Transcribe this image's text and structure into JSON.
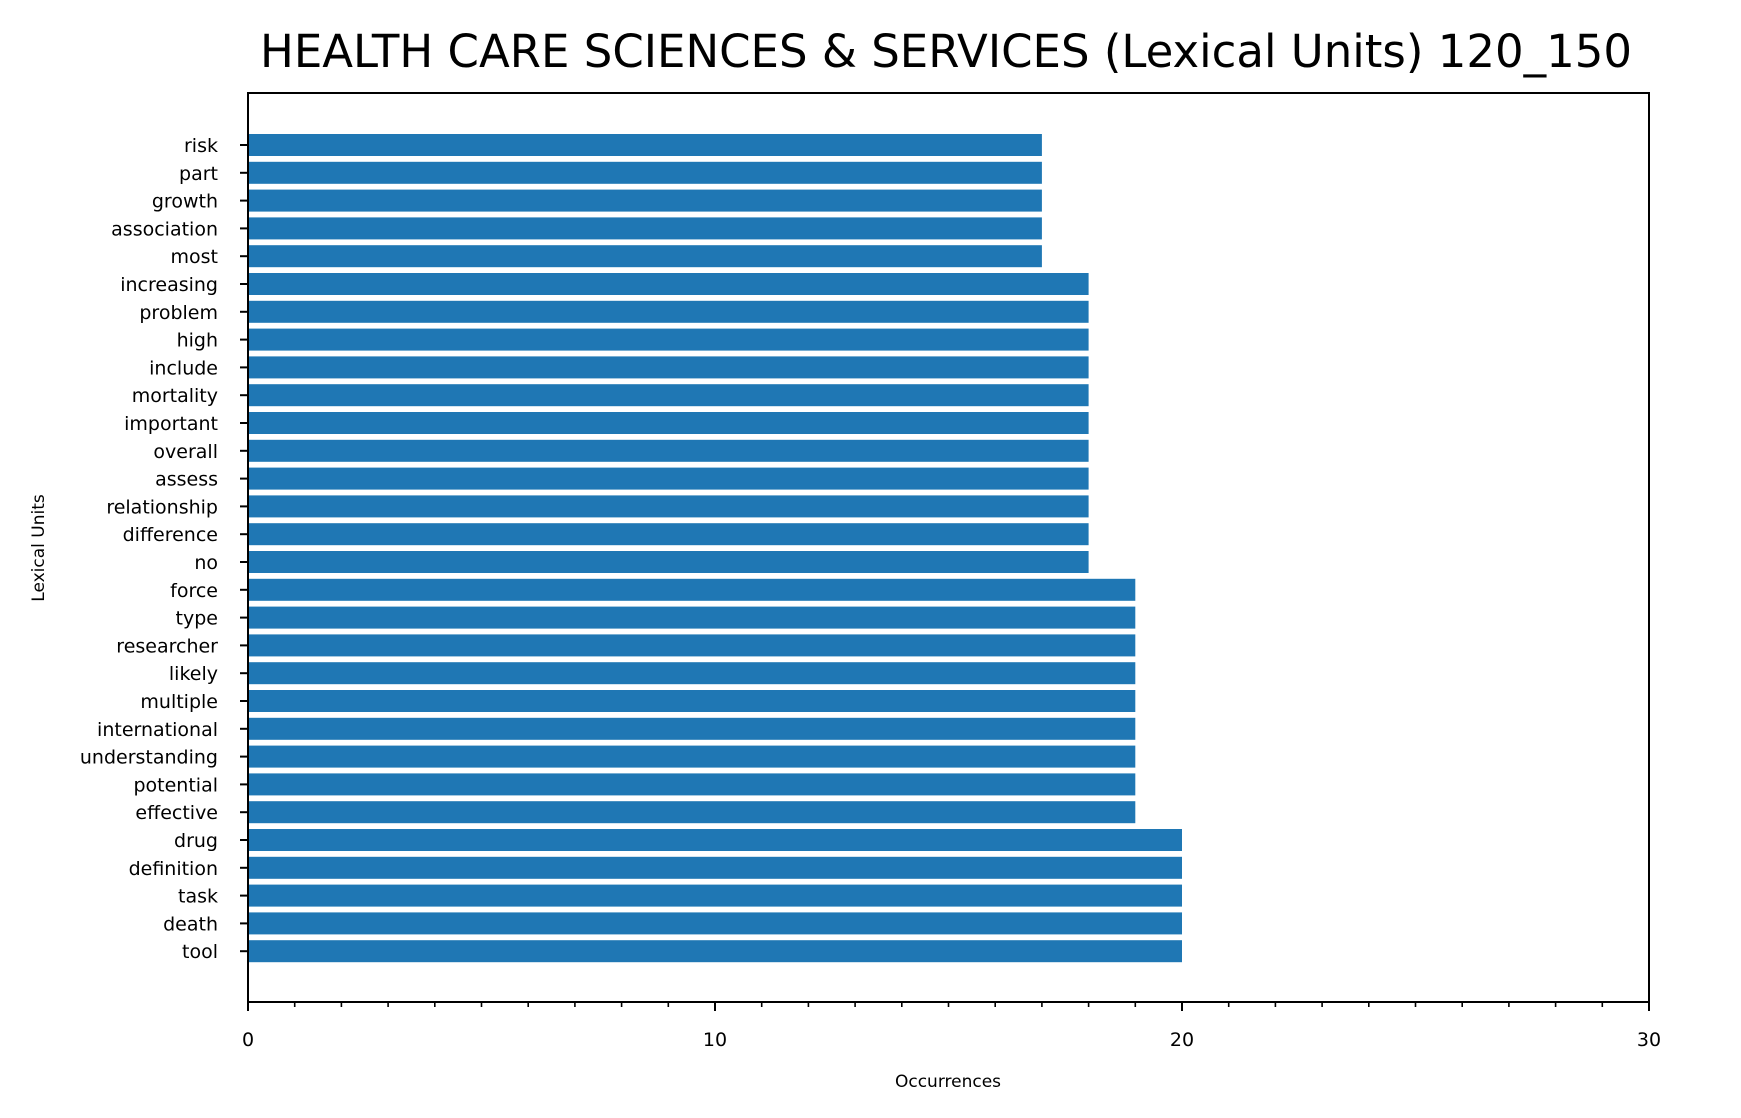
{
  "chart_data": {
    "type": "bar",
    "orientation": "horizontal",
    "title": "HEALTH CARE SCIENCES & SERVICES (Lexical Units) 120_150",
    "xlabel": "Occurrences",
    "ylabel": "Lexical Units",
    "xlim": [
      0,
      30
    ],
    "x_ticks": [
      "0",
      "10",
      "20",
      "30"
    ],
    "grid": false,
    "bar_color": "#1f77b4",
    "categories": [
      "risk",
      "part",
      "growth",
      "association",
      "most",
      "increasing",
      "problem",
      "high",
      "include",
      "mortality",
      "important",
      "overall",
      "assess",
      "relationship",
      "difference",
      "no",
      "force",
      "type",
      "researcher",
      "likely",
      "multiple",
      "international",
      "understanding",
      "potential",
      "effective",
      "drug",
      "definition",
      "task",
      "death",
      "tool"
    ],
    "values": [
      17,
      17,
      17,
      17,
      17,
      18,
      18,
      18,
      18,
      18,
      18,
      18,
      18,
      18,
      18,
      18,
      19,
      19,
      19,
      19,
      19,
      19,
      19,
      19,
      19,
      20,
      20,
      20,
      20,
      20
    ]
  }
}
